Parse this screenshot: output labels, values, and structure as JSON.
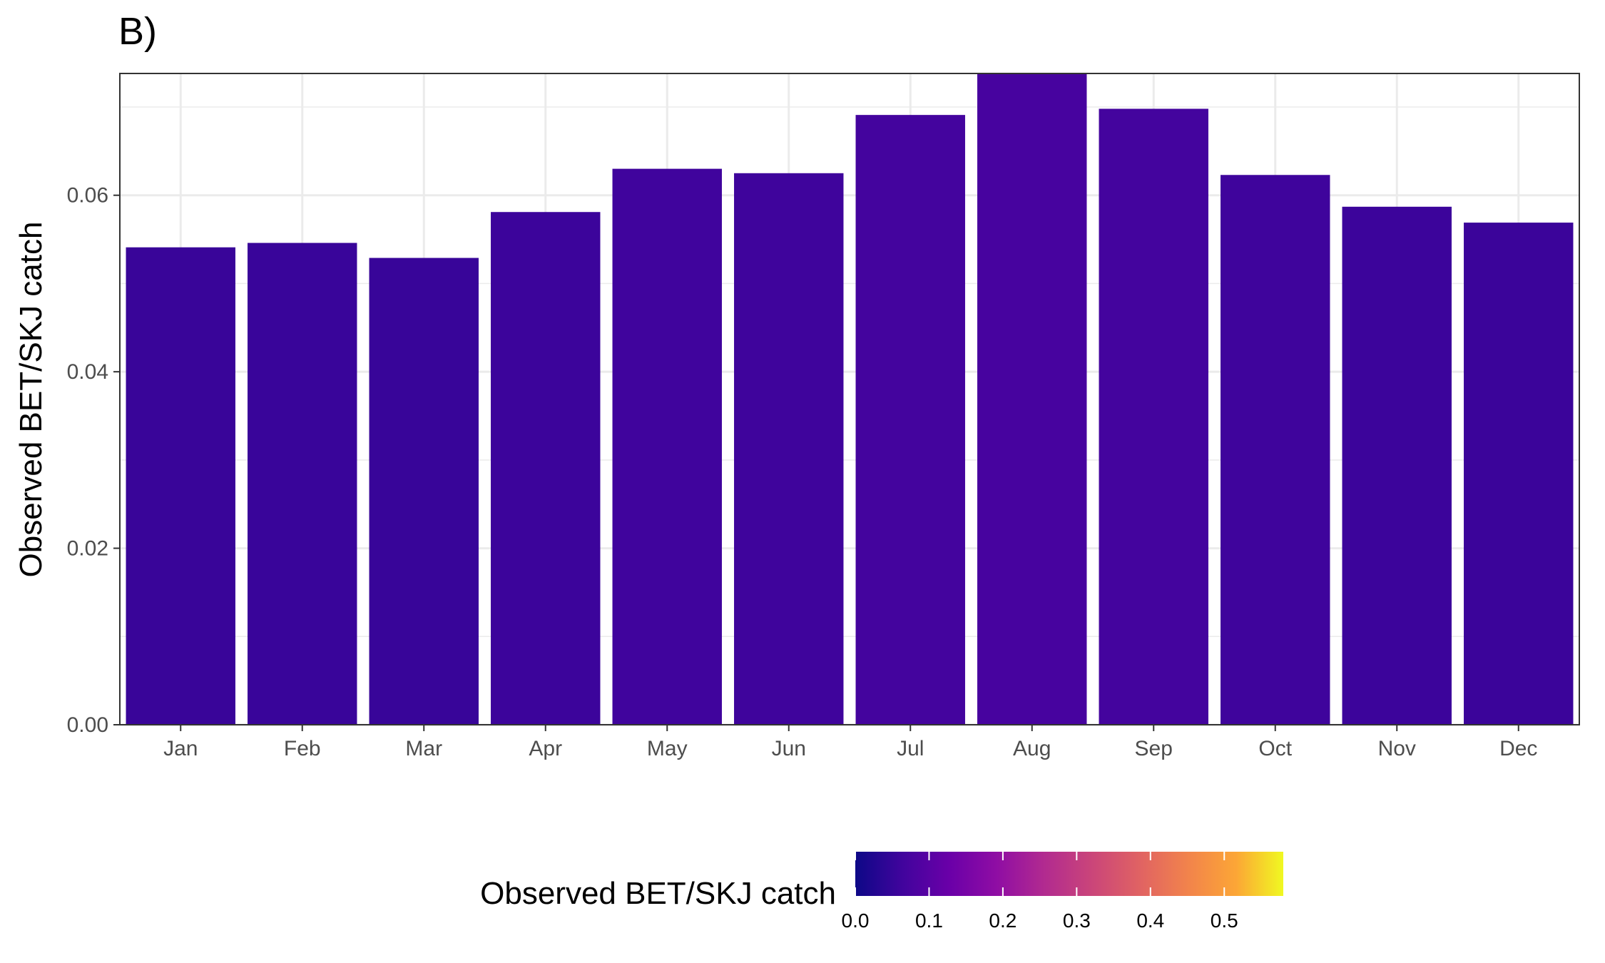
{
  "chart_data": {
    "type": "bar",
    "panel_tag": "B)",
    "categories": [
      "Jan",
      "Feb",
      "Mar",
      "Apr",
      "May",
      "Jun",
      "Jul",
      "Aug",
      "Sep",
      "Oct",
      "Nov",
      "Dec"
    ],
    "values": [
      0.0541,
      0.0546,
      0.0529,
      0.0581,
      0.063,
      0.0625,
      0.0691,
      0.0738,
      0.0698,
      0.0623,
      0.0587,
      0.0569
    ],
    "xlabel": "",
    "ylabel": "Observed BET/SKJ catch",
    "ylim": [
      0,
      0.0738
    ],
    "yticks": [
      0.0,
      0.02,
      0.04,
      0.06
    ],
    "ytick_labels": [
      "0.00",
      "0.02",
      "0.04",
      "0.06"
    ],
    "grid": true,
    "fill_scale": {
      "title": "Observed BET/SKJ catch",
      "palette": "plasma",
      "range": [
        0,
        0.58
      ],
      "ticks": [
        0.0,
        0.1,
        0.2,
        0.3,
        0.4,
        0.5
      ],
      "tick_labels": [
        "0.0",
        "0.1",
        "0.2",
        "0.3",
        "0.4",
        "0.5"
      ]
    },
    "legend_position": "bottom"
  }
}
